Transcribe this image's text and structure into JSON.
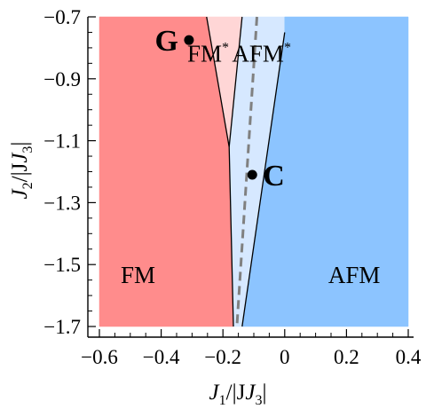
{
  "chart_data": {
    "type": "area",
    "title": "",
    "xlabel": {
      "main": "J",
      "sub": "1",
      "rest": "/|J",
      "sub2": "3",
      "end": "|"
    },
    "ylabel": {
      "main": "J",
      "sub": "2",
      "rest": "/|J",
      "sub2": "3",
      "end": "|"
    },
    "xlim": [
      -0.6,
      0.4
    ],
    "ylim": [
      -1.7,
      -0.7
    ],
    "x_ticks": [
      -0.6,
      -0.4,
      -0.2,
      0,
      0.2,
      0.4
    ],
    "x_tick_labels": [
      "−0.6",
      "−0.4",
      "−0.2",
      "0",
      "0.2",
      "0.4"
    ],
    "y_ticks": [
      -0.7,
      -0.9,
      -1.1,
      -1.3,
      -1.5,
      -1.7
    ],
    "y_tick_labels": [
      "−0.7",
      "−0.9",
      "−1.1",
      "−1.3",
      "−1.5",
      "−1.7"
    ],
    "regions": [
      {
        "name": "FM",
        "label": "FM",
        "label_pos": [
          -0.475,
          -1.56
        ],
        "color": "#ff8c8c",
        "polygon": [
          [
            -0.6,
            -0.7
          ],
          [
            -0.253,
            -0.7
          ],
          [
            -0.18,
            -1.12
          ],
          [
            -0.166,
            -1.7
          ],
          [
            -0.6,
            -1.7
          ]
        ]
      },
      {
        "name": "FM*",
        "label": "FM",
        "label_sup": "*",
        "label_pos": [
          -0.248,
          -0.845
        ],
        "color": "#ffd6d6",
        "polygon": [
          [
            -0.253,
            -0.7
          ],
          [
            -0.138,
            -0.7
          ],
          [
            -0.18,
            -1.12
          ]
        ]
      },
      {
        "name": "AFM*",
        "label": "AFM",
        "label_sup": "*",
        "label_pos": [
          -0.075,
          -0.845
        ],
        "color": "#d6e8ff",
        "polygon": [
          [
            -0.138,
            -0.7
          ],
          [
            0.0,
            -0.7
          ],
          [
            0.0,
            -0.75
          ],
          [
            -0.138,
            -1.7
          ],
          [
            -0.166,
            -1.7
          ],
          [
            -0.18,
            -1.12
          ]
        ]
      },
      {
        "name": "AFM",
        "label": "AFM",
        "label_pos": [
          0.225,
          -1.56
        ],
        "color": "#8cc4ff",
        "polygon": [
          [
            0.0,
            -0.75
          ],
          [
            0.0,
            -0.7
          ],
          [
            0.4,
            -0.7
          ],
          [
            0.4,
            -1.7
          ],
          [
            -0.138,
            -1.7
          ]
        ]
      }
    ],
    "boundaries": [
      {
        "name": "fm-boundary",
        "points": [
          [
            -0.253,
            -0.7
          ],
          [
            -0.18,
            -1.12
          ],
          [
            -0.166,
            -1.7
          ]
        ]
      },
      {
        "name": "fm-star-boundary",
        "points": [
          [
            -0.138,
            -0.7
          ],
          [
            -0.18,
            -1.12
          ]
        ]
      },
      {
        "name": "afm-boundary",
        "points": [
          [
            0.0,
            -0.75
          ],
          [
            -0.138,
            -1.7
          ]
        ]
      }
    ],
    "dashed_line": {
      "name": "dashed-boundary",
      "points": [
        [
          -0.09,
          -0.7
        ],
        [
          -0.155,
          -1.7
        ]
      ],
      "color": "#808080"
    },
    "points": [
      {
        "label": "G",
        "x": -0.31,
        "y": -0.775
      },
      {
        "label": "C",
        "x": -0.105,
        "y": -1.21
      }
    ],
    "grid": false
  }
}
